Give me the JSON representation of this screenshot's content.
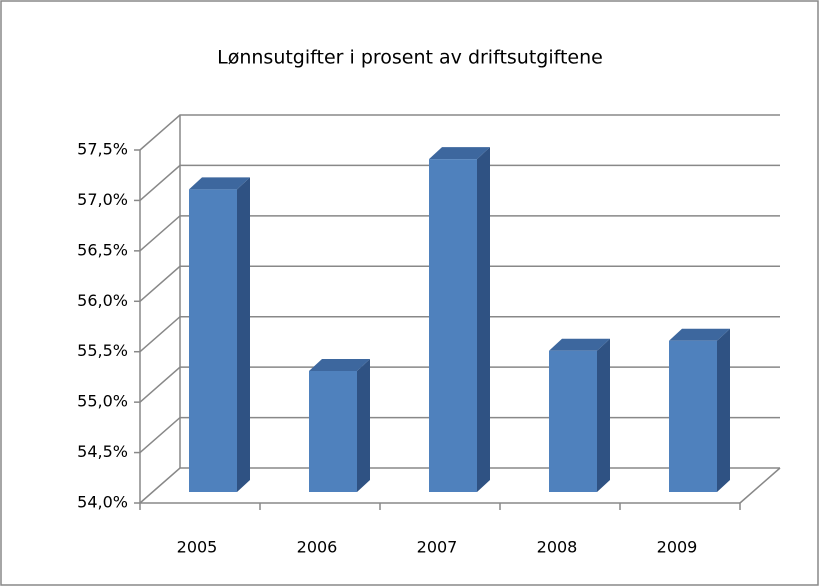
{
  "chart_data": {
    "type": "bar3d",
    "title": "Lønnsutgifter i prosent av driftsutgiftene",
    "categories": [
      "2005",
      "2006",
      "2007",
      "2008",
      "2009"
    ],
    "values": [
      57.0,
      55.2,
      57.3,
      55.4,
      55.5
    ],
    "color": "#4f81bd",
    "ylim": [
      54.0,
      57.5
    ],
    "yticks": [
      {
        "value": 54.0,
        "label": "54,0%"
      },
      {
        "value": 54.5,
        "label": "54,5%"
      },
      {
        "value": 55.0,
        "label": "55,0%"
      },
      {
        "value": 55.5,
        "label": "55,5%"
      },
      {
        "value": 56.0,
        "label": "56,0%"
      },
      {
        "value": 56.5,
        "label": "56,5%"
      },
      {
        "value": 57.0,
        "label": "57,0%"
      },
      {
        "value": 57.5,
        "label": "57,5%"
      }
    ],
    "grid": true
  }
}
